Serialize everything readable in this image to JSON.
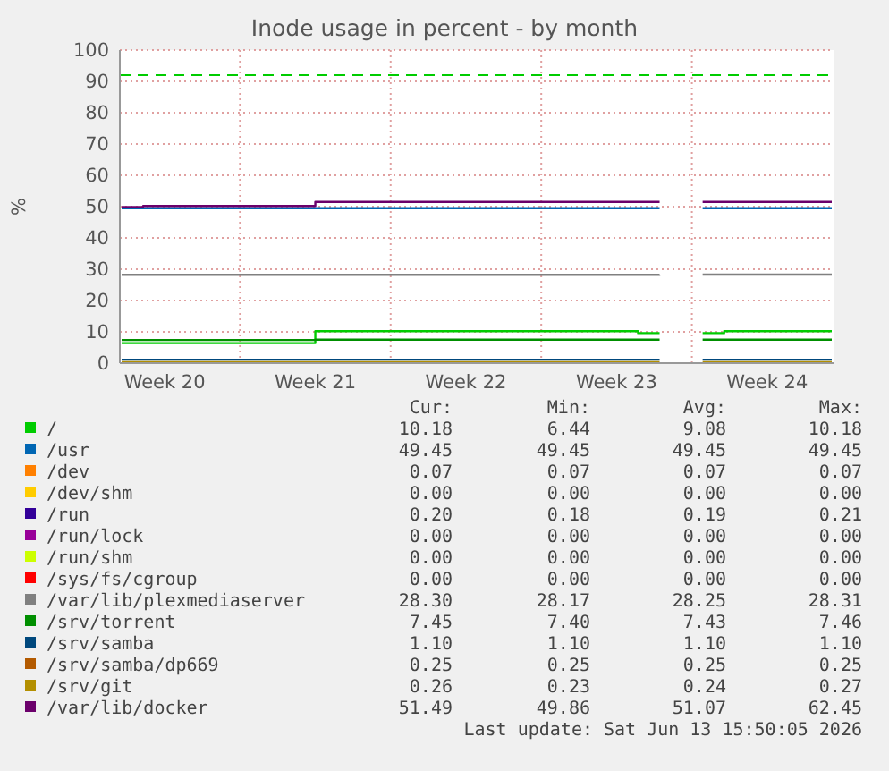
{
  "chart_data": {
    "type": "step",
    "title": "Inode usage in percent - by month",
    "ylabel": "%",
    "categories": [
      null,
      null,
      "Week 20",
      null,
      null,
      null,
      null,
      null,
      null,
      "Week 21",
      null,
      null,
      null,
      null,
      null,
      null,
      "Week 22",
      null,
      null,
      null,
      null,
      null,
      null,
      "Week 23",
      null,
      null,
      null,
      null,
      null,
      null,
      "Week 24",
      null,
      null,
      null
    ],
    "ylim": [
      0,
      100
    ],
    "yticks": [
      0,
      10,
      20,
      30,
      40,
      50,
      60,
      70,
      80,
      90,
      100
    ],
    "grid": true,
    "legend": "bottom",
    "ref_lines": [
      {
        "axis": "y",
        "value": 92,
        "color": "#00cc00",
        "line_style": "dashed"
      }
    ],
    "series": [
      {
        "name": "/",
        "color": "#00cc00",
        "values": [
          6.4,
          6.4,
          6.4,
          6.4,
          6.4,
          6.4,
          6.4,
          6.4,
          6.4,
          10.2,
          10.2,
          10.2,
          10.2,
          10.2,
          10.2,
          10.2,
          10.2,
          10.2,
          10.2,
          10.2,
          10.2,
          10.2,
          10.2,
          10.2,
          9.6,
          9.6,
          null,
          9.6,
          10.2,
          10.2,
          10.2,
          10.2,
          10.2,
          10.2
        ]
      },
      {
        "name": "/usr",
        "color": "#0066b3",
        "values": [
          49.5,
          49.5,
          49.5,
          49.5,
          49.5,
          49.5,
          49.5,
          49.5,
          49.5,
          49.5,
          49.5,
          49.5,
          49.5,
          49.5,
          49.5,
          49.5,
          49.5,
          49.5,
          49.5,
          49.5,
          49.5,
          49.5,
          49.5,
          49.5,
          49.5,
          49.5,
          null,
          49.5,
          49.5,
          49.5,
          49.5,
          49.5,
          49.5,
          49.5
        ]
      },
      {
        "name": "/dev",
        "color": "#ff8000",
        "values": [
          null,
          null,
          null,
          null,
          null,
          null,
          null,
          null,
          null,
          null,
          null,
          null,
          null,
          null,
          null,
          null,
          null,
          null,
          null,
          null,
          null,
          null,
          null,
          null,
          null,
          null,
          null,
          null,
          null,
          null,
          null,
          null,
          null,
          null
        ]
      },
      {
        "name": "/dev/shm",
        "color": "#ffcc00",
        "values": [
          null,
          null,
          null,
          null,
          null,
          null,
          null,
          null,
          null,
          null,
          null,
          null,
          null,
          null,
          null,
          null,
          null,
          null,
          null,
          null,
          null,
          null,
          null,
          null,
          null,
          null,
          null,
          null,
          null,
          null,
          null,
          null,
          null,
          null
        ]
      },
      {
        "name": "/run",
        "color": "#330099",
        "values": [
          null,
          null,
          null,
          null,
          null,
          null,
          null,
          null,
          null,
          null,
          null,
          null,
          null,
          null,
          null,
          null,
          null,
          null,
          null,
          null,
          null,
          null,
          null,
          null,
          null,
          null,
          null,
          null,
          null,
          null,
          null,
          null,
          null,
          null
        ]
      },
      {
        "name": "/run/lock",
        "color": "#990099",
        "values": [
          null,
          null,
          null,
          null,
          null,
          null,
          null,
          null,
          null,
          null,
          null,
          null,
          null,
          null,
          null,
          null,
          null,
          null,
          null,
          null,
          null,
          null,
          null,
          null,
          null,
          null,
          null,
          null,
          null,
          null,
          null,
          null,
          null,
          null
        ]
      },
      {
        "name": "/run/shm",
        "color": "#ccff00",
        "values": [
          null,
          null,
          null,
          null,
          null,
          null,
          null,
          null,
          null,
          null,
          null,
          null,
          null,
          null,
          null,
          null,
          null,
          null,
          null,
          null,
          null,
          null,
          null,
          null,
          null,
          null,
          null,
          null,
          null,
          null,
          null,
          null,
          null,
          null
        ]
      },
      {
        "name": "/sys/fs/cgroup",
        "color": "#ff0000",
        "values": [
          null,
          null,
          null,
          null,
          null,
          null,
          null,
          null,
          null,
          null,
          null,
          null,
          null,
          null,
          null,
          null,
          null,
          null,
          null,
          null,
          null,
          null,
          null,
          null,
          null,
          null,
          null,
          null,
          null,
          null,
          null,
          null,
          null,
          null
        ]
      },
      {
        "name": "/var/lib/plexmediaserver",
        "color": "#808080",
        "values": [
          28.2,
          28.2,
          28.2,
          28.2,
          28.2,
          28.2,
          28.2,
          28.2,
          28.2,
          28.2,
          28.2,
          28.2,
          28.2,
          28.2,
          28.2,
          28.2,
          28.2,
          28.2,
          28.2,
          28.2,
          28.2,
          28.2,
          28.2,
          28.2,
          28.2,
          28.3,
          null,
          28.3,
          28.3,
          28.3,
          28.3,
          28.3,
          28.3,
          28.3
        ]
      },
      {
        "name": "/srv/torrent",
        "color": "#008f00",
        "values": [
          7.4,
          7.4,
          7.4,
          7.4,
          7.4,
          7.4,
          7.4,
          7.4,
          7.4,
          7.5,
          7.5,
          7.5,
          7.5,
          7.5,
          7.5,
          7.5,
          7.5,
          7.5,
          7.5,
          7.5,
          7.5,
          7.5,
          7.5,
          7.5,
          7.5,
          7.5,
          null,
          7.5,
          7.5,
          7.5,
          7.5,
          7.5,
          7.5,
          7.5
        ]
      },
      {
        "name": "/srv/samba",
        "color": "#00487d",
        "values": [
          1.1,
          1.1,
          1.1,
          1.1,
          1.1,
          1.1,
          1.1,
          1.1,
          1.1,
          1.1,
          1.1,
          1.1,
          1.1,
          1.1,
          1.1,
          1.1,
          1.1,
          1.1,
          1.1,
          1.1,
          1.1,
          1.1,
          1.1,
          1.1,
          1.1,
          1.1,
          null,
          1.1,
          1.1,
          1.1,
          1.1,
          1.1,
          1.1,
          1.1
        ]
      },
      {
        "name": "/srv/samba/dp669",
        "color": "#b35a00",
        "values": [
          null,
          null,
          null,
          null,
          null,
          null,
          null,
          null,
          null,
          null,
          null,
          null,
          null,
          null,
          null,
          null,
          null,
          null,
          null,
          null,
          null,
          null,
          null,
          null,
          null,
          null,
          null,
          null,
          null,
          null,
          null,
          null,
          null,
          null
        ]
      },
      {
        "name": "/srv/git",
        "color": "#b38f00",
        "values": [
          0.3,
          0.3,
          0.3,
          0.3,
          0.3,
          0.3,
          0.3,
          0.3,
          0.3,
          0.3,
          0.3,
          0.3,
          0.3,
          0.3,
          0.3,
          0.3,
          0.3,
          0.3,
          0.3,
          0.3,
          0.3,
          0.3,
          0.3,
          0.3,
          0.3,
          0.3,
          null,
          0.3,
          0.3,
          0.3,
          0.3,
          0.3,
          0.3,
          0.3
        ]
      },
      {
        "name": "/var/lib/docker",
        "color": "#6b006b",
        "values": [
          49.9,
          50.2,
          50.2,
          50.2,
          50.2,
          50.2,
          50.2,
          50.2,
          50.2,
          51.5,
          51.5,
          51.5,
          51.5,
          51.5,
          51.5,
          51.5,
          51.5,
          51.5,
          51.5,
          51.5,
          51.5,
          51.5,
          51.5,
          51.5,
          51.5,
          51.5,
          null,
          51.5,
          51.5,
          51.5,
          51.5,
          51.5,
          51.5,
          51.5
        ]
      }
    ],
    "annotations": [
      "Cur:",
      "Min:",
      "Avg:",
      "Max:",
      "10.18",
      "6.44",
      "9.08",
      "10.18",
      "49.45",
      "49.45",
      "49.45",
      "49.45",
      "0.07",
      "0.07",
      "0.07",
      "0.07",
      "0.00",
      "0.00",
      "0.00",
      "0.00",
      "0.20",
      "0.18",
      "0.19",
      "0.21",
      "0.00",
      "0.00",
      "0.00",
      "0.00",
      "0.00",
      "0.00",
      "0.00",
      "0.00",
      "0.00",
      "0.00",
      "0.00",
      "0.00",
      "28.30",
      "28.17",
      "28.25",
      "28.31",
      "7.45",
      "7.40",
      "7.43",
      "7.46",
      "1.10",
      "1.10",
      "1.10",
      "1.10",
      "0.25",
      "0.25",
      "0.25",
      "0.25",
      "0.26",
      "0.23",
      "0.24",
      "0.27",
      "51.49",
      "49.86",
      "51.07",
      "62.45",
      "Last update: Sat Jun 13 15:50:05 2026"
    ]
  }
}
